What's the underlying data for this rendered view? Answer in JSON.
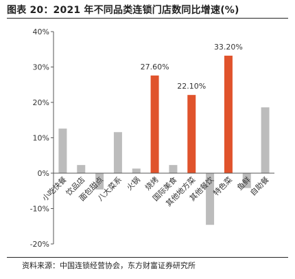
{
  "title": "图表 20：2021 年不同品类连锁门店数同比增速(%)",
  "source": "资料来源：中国连锁经营协会，东方财富证券研究所",
  "colors": {
    "default": "#bcbcbc",
    "highlight": "#e0532c",
    "axis": "#555555",
    "text": "#333333"
  },
  "chart_data": {
    "type": "bar",
    "categories": [
      "小吃快餐",
      "饮品店",
      "面包甜点",
      "八大菜系",
      "火锅",
      "烧烤",
      "国际美食",
      "其他地方菜",
      "其他餐饮",
      "特色菜",
      "鱼鲜",
      "自助餐"
    ],
    "values": [
      12.6,
      2.3,
      -4.6,
      11.6,
      1.3,
      27.6,
      2.3,
      22.1,
      -14.6,
      33.2,
      -4.2,
      18.6
    ],
    "highlight": [
      false,
      false,
      false,
      false,
      false,
      true,
      false,
      true,
      false,
      true,
      false,
      false
    ],
    "data_labels": [
      "",
      "",
      "",
      "",
      "",
      "27.60%",
      "",
      "22.10%",
      "",
      "33.20%",
      "",
      ""
    ],
    "ylim": [
      -20,
      40
    ],
    "yticks": [
      -20,
      -10,
      0,
      10,
      20,
      30,
      40
    ],
    "ytick_labels": [
      "-20%",
      "-10%",
      "0%",
      "10%",
      "20%",
      "30%",
      "40%"
    ],
    "xlabel": "",
    "ylabel": "",
    "grid": false,
    "legend": "none"
  }
}
